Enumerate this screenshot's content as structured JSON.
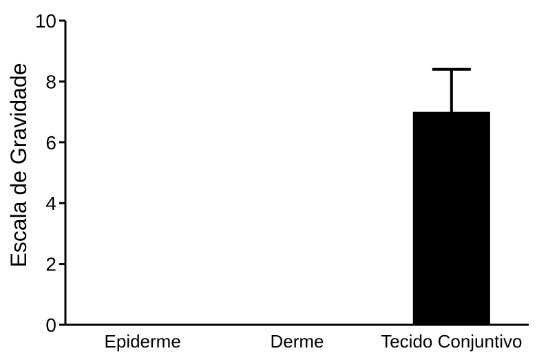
{
  "chart_data": {
    "type": "bar",
    "categories": [
      "Epiderme",
      "Derme",
      "Tecido Conjuntivo"
    ],
    "values": [
      0,
      0,
      7.0
    ],
    "error_upper": [
      0,
      0,
      8.4
    ],
    "xlabel": "",
    "ylabel": "Escala de Gravidade",
    "ylim": [
      0,
      10
    ],
    "yticks": [
      "0",
      "2",
      "4",
      "6",
      "8",
      "10"
    ],
    "bar_color": "#000000",
    "grid": false
  }
}
